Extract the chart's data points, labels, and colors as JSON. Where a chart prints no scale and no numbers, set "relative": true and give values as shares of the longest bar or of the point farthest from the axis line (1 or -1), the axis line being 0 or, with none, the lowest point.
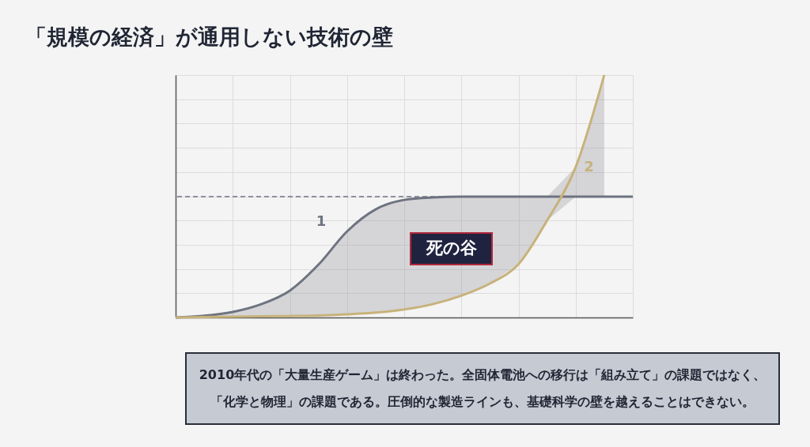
{
  "chart_data": {
    "type": "line",
    "title": "「規模の経済」が通用しない技術の壁",
    "categories": [
      null,
      null,
      null,
      null,
      null,
      null,
      null,
      null,
      null,
      null,
      null,
      null,
      null,
      null,
      null,
      null,
      null
    ],
    "relative": true,
    "grid": true,
    "tick_labels": false,
    "marker": "none",
    "line_style": "solid",
    "series": [
      {
        "name": "1",
        "color": "#6e7380",
        "values": [
          0,
          0.007,
          0.023,
          0.055,
          0.111,
          0.218,
          0.355,
          0.446,
          0.485,
          0.495,
          0.498,
          0.498,
          0.498,
          0.498,
          0.498,
          0.498,
          0.498
        ],
        "lower": [
          0,
          0.002,
          0.003,
          0.005,
          0.006,
          0.008,
          0.013,
          0.02,
          0.033,
          0.055,
          0.09,
          0.14,
          0.22,
          0.4,
          0.498,
          0.498,
          null
        ],
        "upper": [
          0,
          0.007,
          0.023,
          0.055,
          0.111,
          0.218,
          0.355,
          0.446,
          0.485,
          0.495,
          0.498,
          0.498,
          0.498,
          0.498,
          0.62,
          1.0,
          null
        ]
      },
      {
        "name": "2",
        "color": "#c8b27a",
        "values": [
          0,
          0.002,
          0.003,
          0.005,
          0.006,
          0.008,
          0.013,
          0.02,
          0.033,
          0.055,
          0.09,
          0.14,
          0.22,
          0.4,
          0.62,
          1.0,
          null
        ]
      }
    ],
    "ref_lines": [
      {
        "axis": "y",
        "value": 0.498,
        "color": "#6e7380",
        "line_style": "dashed"
      }
    ],
    "annotations": [
      "死の谷",
      "2010年代の「大量生産ゲーム」は終わった。全固体電池への移行は「組み立て」の課題ではなく、",
      "「化学と物理」の課題である。圧倒的な製造ラインも、基礎科学の壁を越えることはできない。"
    ]
  }
}
